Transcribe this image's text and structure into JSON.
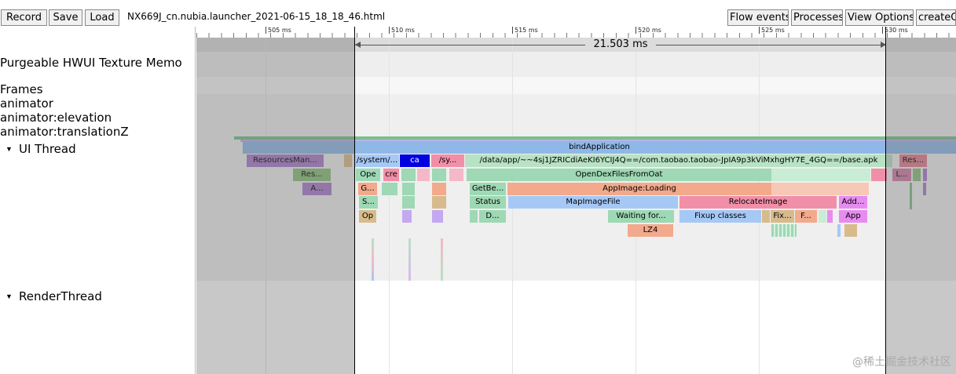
{
  "toolbar": {
    "record_label": "Record",
    "save_label": "Save",
    "load_label": "Load",
    "filename": "NX669J_cn.nubia.launcher_2021-06-15_18_18_46.html",
    "flow_events_label": "Flow events",
    "processes_label": "Processes",
    "view_options_label": "View Options",
    "extra_label": "createCl"
  },
  "ruler": {
    "ticks": [
      "505 ms",
      "510 ms",
      "515 ms",
      "520 ms",
      "525 ms",
      "530 ms"
    ],
    "measure_label": "21.503 ms"
  },
  "tracks": {
    "purgeable": "Purgeable HWUI Texture Memo",
    "frames": "Frames",
    "animator": "animator",
    "animator_elevation": "animator:elevation",
    "animator_translationz": "animator:translationZ",
    "ui_thread": "UI Thread",
    "render_thread": "RenderThread",
    "expand_glyph": "▼"
  },
  "slices": {
    "bind_application": "bindApplication",
    "resources_man": "ResourcesMan...",
    "system_1": "/system/...",
    "ca": "ca",
    "sy": "/sy...",
    "base_apk": "/data/app/~~4sj1JZRICdiAeKI6YCIJ4Q==/com.taobao.taobao-JpIA9p3kViMxhgHY7E_4GQ==/base.apk",
    "res_right": "Res...",
    "res_left": "Res...",
    "ope": "Ope",
    "cre": "cre",
    "open_dex": "OpenDexFilesFromOat",
    "l_right": "L...",
    "a_left": "A...",
    "g": "G...",
    "getbe": "GetBe...",
    "appimage_loading": "AppImage:Loading",
    "s": "S...",
    "status": "Status",
    "mapimagefile": "MapImageFile",
    "relocateimage": "RelocateImage",
    "add": "Add...",
    "op": "Op",
    "d": "D...",
    "waiting_for": "Waiting for...",
    "fixup_classes": "Fixup classes",
    "fix": "Fix...",
    "f": "F...",
    "app": "App",
    "lz4": "LZ4"
  },
  "watermark": "@稀土掘金技术社区",
  "colors": {
    "purple": "#a97ccc",
    "blue_bar": "#8fb8e8",
    "green": "#9ed8b4",
    "orange": "#f2a98c",
    "pink": "#f28fa8",
    "dark_blue": "#0000e0",
    "tan": "#d8bb8c",
    "light_blue": "#a6c8f5",
    "magenta": "#e68cf0",
    "olive": "#8cbf7a"
  }
}
